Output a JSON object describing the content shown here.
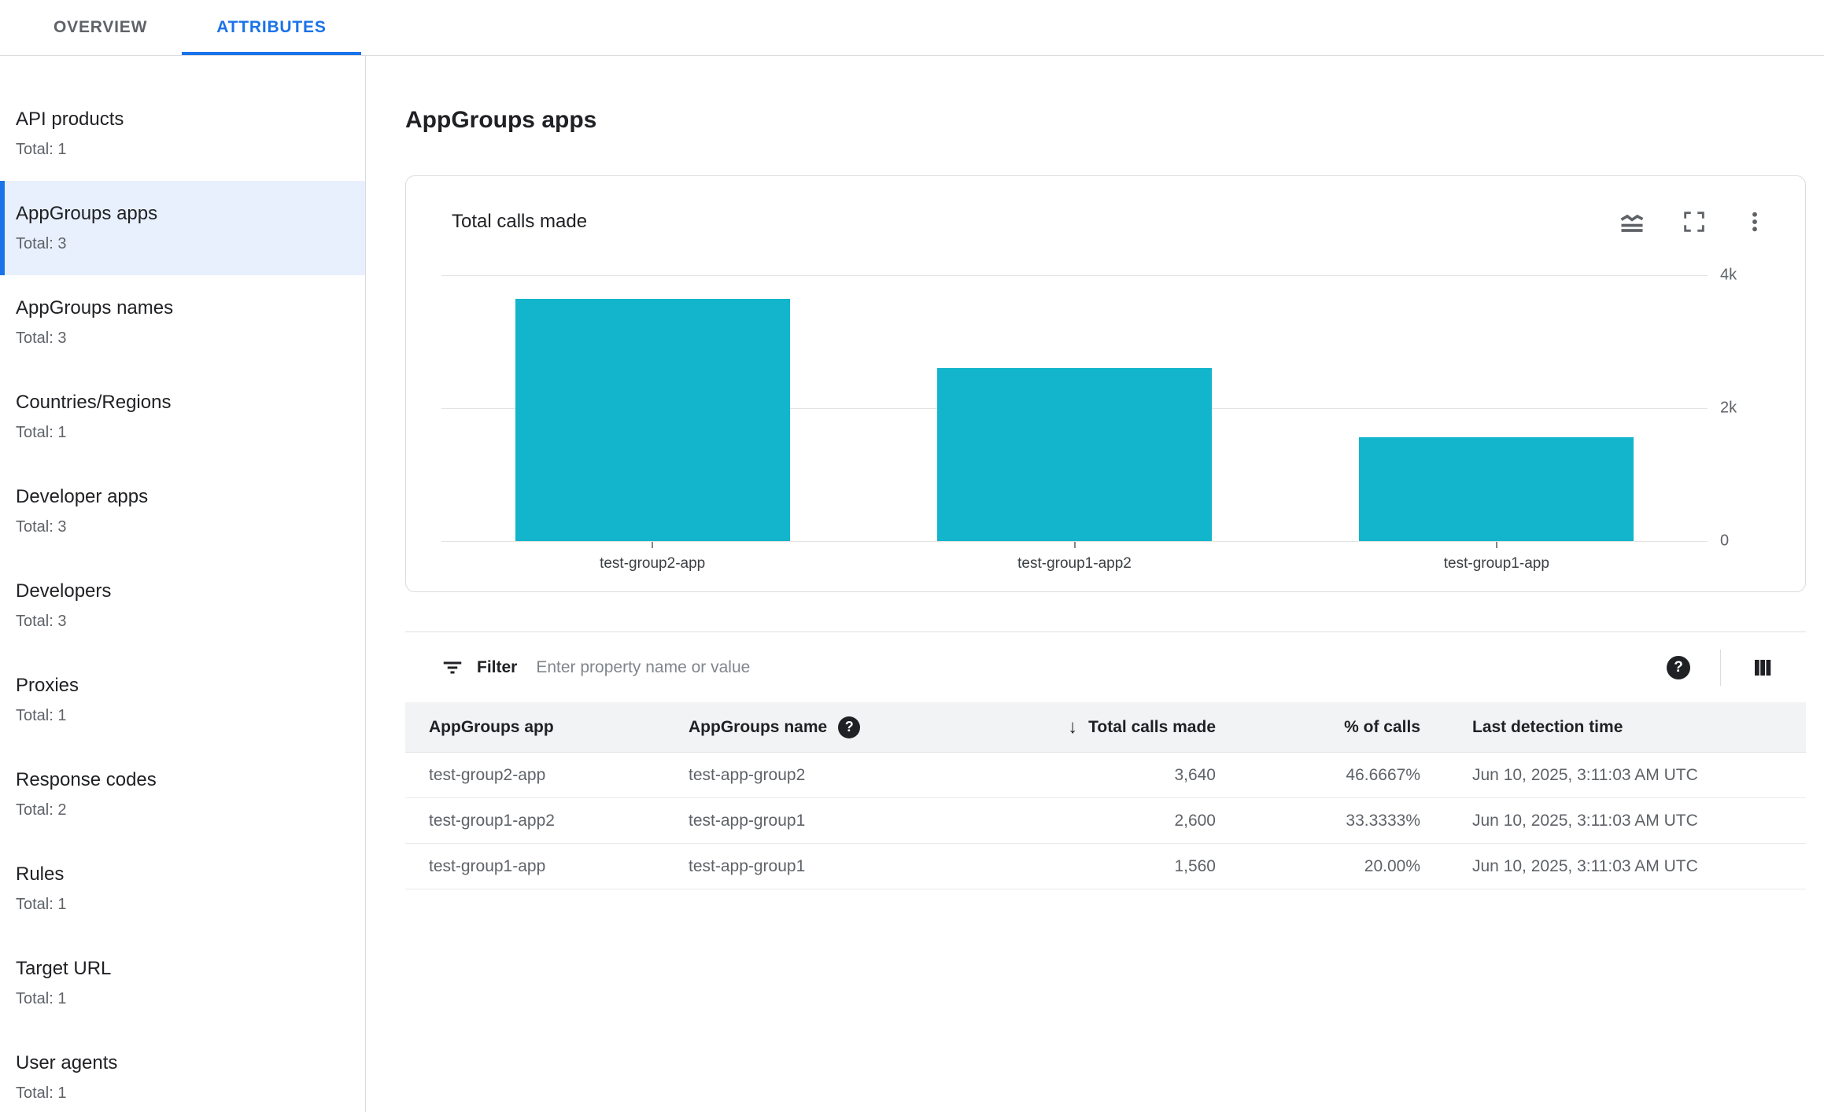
{
  "colors": {
    "accent_blue": "#1a73e8",
    "selected_item_bg": "#e8f0fe",
    "bar_teal": "#12b5cb",
    "border": "#dadce0",
    "table_header_bg": "#f1f3f4",
    "text_primary": "#202124",
    "text_secondary": "#5f6368"
  },
  "tabs": [
    {
      "label": "OVERVIEW",
      "active": false
    },
    {
      "label": "ATTRIBUTES",
      "active": true
    }
  ],
  "sidebar": {
    "items": [
      {
        "label": "API products",
        "total": "Total: 1",
        "selected": false
      },
      {
        "label": "AppGroups apps",
        "total": "Total: 3",
        "selected": true
      },
      {
        "label": "AppGroups names",
        "total": "Total: 3",
        "selected": false
      },
      {
        "label": "Countries/Regions",
        "total": "Total: 1",
        "selected": false
      },
      {
        "label": "Developer apps",
        "total": "Total: 3",
        "selected": false
      },
      {
        "label": "Developers",
        "total": "Total: 3",
        "selected": false
      },
      {
        "label": "Proxies",
        "total": "Total: 1",
        "selected": false
      },
      {
        "label": "Response codes",
        "total": "Total: 2",
        "selected": false
      },
      {
        "label": "Rules",
        "total": "Total: 1",
        "selected": false
      },
      {
        "label": "Target URL",
        "total": "Total: 1",
        "selected": false
      },
      {
        "label": "User agents",
        "total": "Total: 1",
        "selected": false
      }
    ]
  },
  "page": {
    "title": "AppGroups apps"
  },
  "chart_card": {
    "title": "Total calls made",
    "icons": [
      "area-chart-icon",
      "fullscreen-icon",
      "more-vert-icon"
    ]
  },
  "chart_data": {
    "type": "bar",
    "title": "Total calls made",
    "categories": [
      "test-group2-app",
      "test-group1-app2",
      "test-group1-app"
    ],
    "values": [
      3640,
      2600,
      1560
    ],
    "ylim": [
      0,
      4000
    ],
    "yticks": [
      {
        "label": "4k",
        "value": 4000
      },
      {
        "label": "2k",
        "value": 2000
      },
      {
        "label": "0",
        "value": 0
      }
    ],
    "bar_color": "#12b5cb",
    "grid": true,
    "legend": false,
    "xlabel": "",
    "ylabel": ""
  },
  "toolbar": {
    "filter_label": "Filter",
    "filter_placeholder": "Enter property name or value",
    "icons": [
      "filter-icon",
      "help-icon",
      "columns-icon"
    ]
  },
  "table": {
    "columns": [
      {
        "label": "AppGroups app"
      },
      {
        "label": "AppGroups name",
        "help": true
      },
      {
        "label": "Total calls made",
        "sort": "desc"
      },
      {
        "label": "% of calls"
      },
      {
        "label": "Last detection time"
      }
    ],
    "rows": [
      [
        "test-group2-app",
        "test-app-group2",
        "3,640",
        "46.6667%",
        "Jun 10, 2025, 3:11:03 AM UTC"
      ],
      [
        "test-group1-app2",
        "test-app-group1",
        "2,600",
        "33.3333%",
        "Jun 10, 2025, 3:11:03 AM UTC"
      ],
      [
        "test-group1-app",
        "test-app-group1",
        "1,560",
        "20.00%",
        "Jun 10, 2025, 3:11:03 AM UTC"
      ]
    ]
  }
}
